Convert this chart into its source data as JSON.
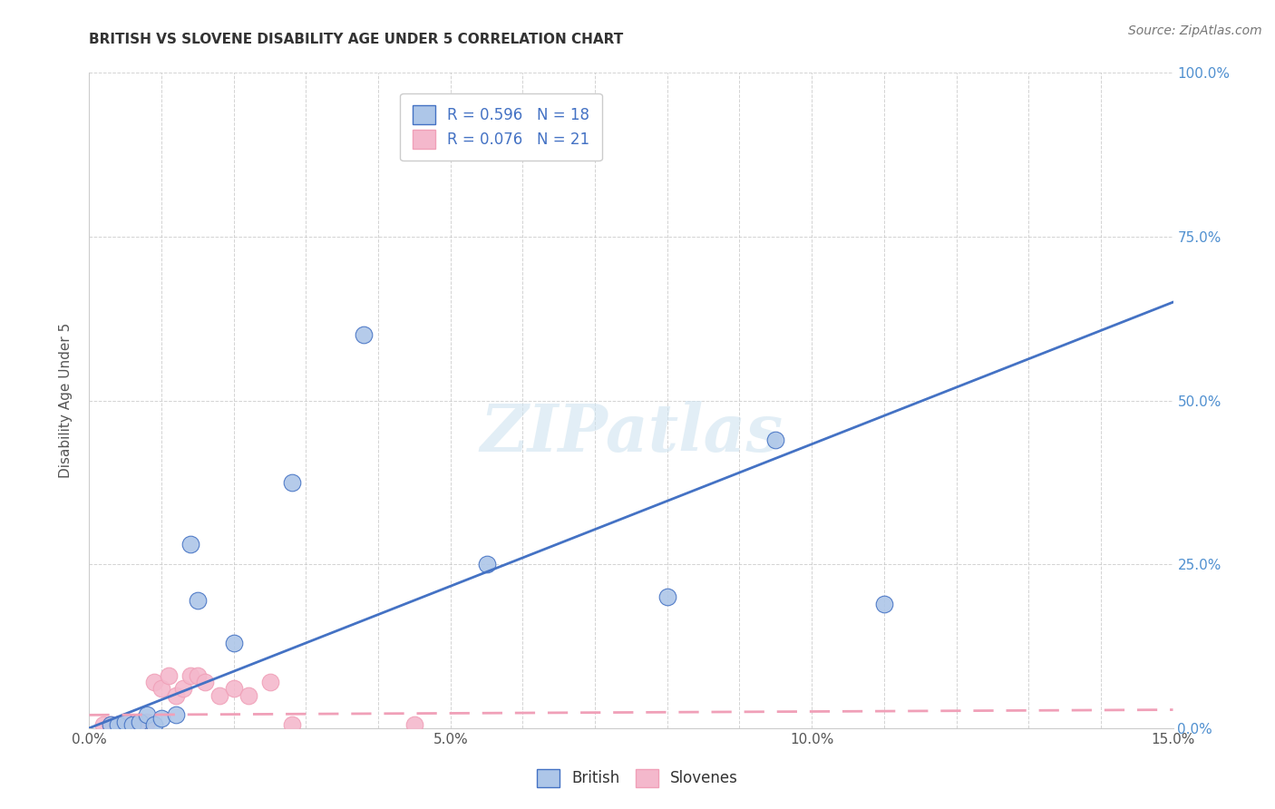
{
  "title": "BRITISH VS SLOVENE DISABILITY AGE UNDER 5 CORRELATION CHART",
  "source": "Source: ZipAtlas.com",
  "ylabel": "Disability Age Under 5",
  "xlim": [
    0.0,
    0.15
  ],
  "ylim": [
    0.0,
    1.0
  ],
  "british_x": [
    0.003,
    0.004,
    0.005,
    0.006,
    0.007,
    0.008,
    0.009,
    0.01,
    0.012,
    0.014,
    0.015,
    0.02,
    0.028,
    0.038,
    0.055,
    0.08,
    0.095,
    0.11
  ],
  "british_y": [
    0.005,
    0.005,
    0.01,
    0.005,
    0.01,
    0.02,
    0.005,
    0.015,
    0.02,
    0.28,
    0.195,
    0.13,
    0.375,
    0.6,
    0.25,
    0.2,
    0.44,
    0.19
  ],
  "slovene_x": [
    0.002,
    0.003,
    0.004,
    0.005,
    0.006,
    0.007,
    0.008,
    0.009,
    0.01,
    0.011,
    0.012,
    0.013,
    0.014,
    0.015,
    0.016,
    0.018,
    0.02,
    0.022,
    0.025,
    0.028,
    0.045
  ],
  "slovene_y": [
    0.005,
    0.005,
    0.005,
    0.01,
    0.005,
    0.01,
    0.01,
    0.07,
    0.06,
    0.08,
    0.05,
    0.06,
    0.08,
    0.08,
    0.07,
    0.05,
    0.06,
    0.05,
    0.07,
    0.005,
    0.005
  ],
  "british_trend_x": [
    0.0,
    0.15
  ],
  "british_trend_y": [
    0.0,
    0.65
  ],
  "slovene_trend_x": [
    0.0,
    0.15
  ],
  "slovene_trend_y": [
    0.02,
    0.028
  ],
  "british_line_color": "#4472c4",
  "slovene_line_color": "#f0a0b8",
  "british_scatter_color": "#adc6e8",
  "slovene_scatter_color": "#f4b8cc",
  "watermark_text": "ZIPatlas",
  "background_color": "#ffffff",
  "grid_color": "#c8c8c8",
  "ytick_color": "#5090d0",
  "xtick_color": "#555555",
  "title_color": "#333333",
  "source_color": "#777777",
  "ylabel_color": "#555555"
}
